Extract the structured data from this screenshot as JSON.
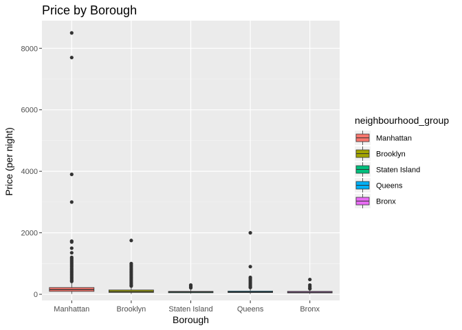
{
  "chart_data": {
    "type": "box",
    "title": "Price by Borough",
    "xlabel": "Borough",
    "ylabel": "Price (per night)",
    "ylim": [
      -200,
      8900
    ],
    "yticks": [
      0,
      2000,
      4000,
      6000,
      8000
    ],
    "grid": true,
    "legend_position": "right",
    "legend_title": "neighbourhood_group",
    "categories": [
      "Manhattan",
      "Brooklyn",
      "Staten Island",
      "Queens",
      "Bronx"
    ],
    "series": [
      {
        "name": "Manhattan",
        "color": "#f8766d",
        "q1": 95,
        "median": 150,
        "q3": 220,
        "whisker_low": 10,
        "whisker_high": 400,
        "outliers": [
          8500,
          7700,
          3900,
          3000,
          1730,
          1700,
          1500,
          1350,
          1200,
          1150,
          1100,
          1050,
          1000,
          950,
          900,
          850,
          800,
          750,
          700,
          650,
          600,
          550,
          500,
          450,
          420
        ]
      },
      {
        "name": "Brooklyn",
        "color": "#a3a500",
        "q1": 60,
        "median": 90,
        "q3": 140,
        "whisker_low": 10,
        "whisker_high": 250,
        "outliers": [
          1750,
          1000,
          950,
          900,
          850,
          800,
          750,
          700,
          650,
          600,
          550,
          500,
          450,
          400,
          350,
          300,
          270
        ]
      },
      {
        "name": "Staten Island",
        "color": "#00bf7d",
        "q1": 50,
        "median": 75,
        "q3": 95,
        "whisker_low": 20,
        "whisker_high": 150,
        "outliers": [
          300,
          270,
          240,
          210
        ]
      },
      {
        "name": "Queens",
        "color": "#00b0f6",
        "q1": 55,
        "median": 75,
        "q3": 105,
        "whisker_low": 10,
        "whisker_high": 180,
        "outliers": [
          2000,
          900,
          550,
          500,
          450,
          400,
          350,
          300,
          250,
          220
        ]
      },
      {
        "name": "Bronx",
        "color": "#e76bf3",
        "q1": 45,
        "median": 65,
        "q3": 95,
        "whisker_low": 10,
        "whisker_high": 150,
        "outliers": [
          480,
          300,
          250,
          200,
          180
        ]
      }
    ]
  }
}
